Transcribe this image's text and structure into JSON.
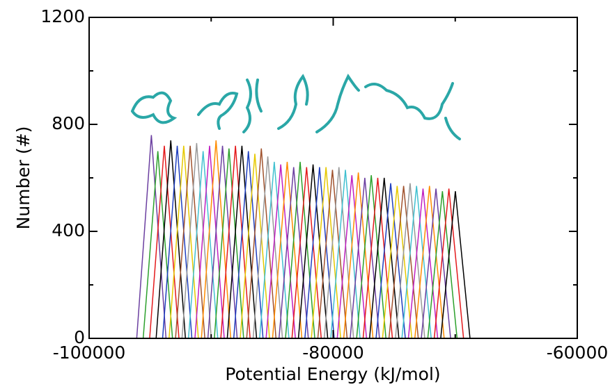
{
  "chart_data": {
    "type": "line",
    "x_label": "Potential Energy (kJ/mol)",
    "y_label": "Number (#)",
    "xlim": [
      -100000,
      -60000
    ],
    "xticks": [
      -100000,
      -80000,
      -60000
    ],
    "xminorticks": [
      -90000,
      -70000
    ],
    "ylim": [
      0,
      1200
    ],
    "yticks": [
      0,
      400,
      800,
      1200
    ],
    "yminorticks": [
      200,
      600,
      1000
    ],
    "series": [
      {
        "color": "#6b3fa0",
        "x": [
          -96100,
          -94900,
          -93700
        ],
        "values": [
          0,
          760,
          0
        ]
      },
      {
        "color": "#2ca02c",
        "x": [
          -95570,
          -94370,
          -93170
        ],
        "values": [
          0,
          700,
          0
        ]
      },
      {
        "color": "#e41a1c",
        "x": [
          -95040,
          -93840,
          -92640
        ],
        "values": [
          0,
          720,
          0
        ]
      },
      {
        "color": "#000000",
        "x": [
          -94510,
          -93310,
          -92110
        ],
        "values": [
          0,
          740,
          0
        ]
      },
      {
        "color": "#1f3fbf",
        "x": [
          -93980,
          -92780,
          -91580
        ],
        "values": [
          0,
          720,
          0
        ]
      },
      {
        "color": "#e6c800",
        "x": [
          -93450,
          -92250,
          -91050
        ],
        "values": [
          0,
          720,
          0
        ]
      },
      {
        "color": "#a0522d",
        "x": [
          -92920,
          -91720,
          -90520
        ],
        "values": [
          0,
          720,
          0
        ]
      },
      {
        "color": "#999999",
        "x": [
          -92390,
          -91190,
          -89990
        ],
        "values": [
          0,
          730,
          0
        ]
      },
      {
        "color": "#40c0d0",
        "x": [
          -91860,
          -90660,
          -89460
        ],
        "values": [
          0,
          700,
          0
        ]
      },
      {
        "color": "#c020c0",
        "x": [
          -91330,
          -90130,
          -88930
        ],
        "values": [
          0,
          720,
          0
        ]
      },
      {
        "color": "#ff8c00",
        "x": [
          -90800,
          -89600,
          -88400
        ],
        "values": [
          0,
          740,
          0
        ]
      },
      {
        "color": "#6b3fa0",
        "x": [
          -90270,
          -89070,
          -87870
        ],
        "values": [
          0,
          720,
          0
        ]
      },
      {
        "color": "#2ca02c",
        "x": [
          -89740,
          -88540,
          -87340
        ],
        "values": [
          0,
          710,
          0
        ]
      },
      {
        "color": "#e41a1c",
        "x": [
          -89210,
          -88010,
          -86810
        ],
        "values": [
          0,
          720,
          0
        ]
      },
      {
        "color": "#000000",
        "x": [
          -88680,
          -87480,
          -86280
        ],
        "values": [
          0,
          720,
          0
        ]
      },
      {
        "color": "#1f3fbf",
        "x": [
          -88150,
          -86950,
          -85750
        ],
        "values": [
          0,
          700,
          0
        ]
      },
      {
        "color": "#e6c800",
        "x": [
          -87620,
          -86420,
          -85220
        ],
        "values": [
          0,
          690,
          0
        ]
      },
      {
        "color": "#a0522d",
        "x": [
          -87090,
          -85890,
          -84690
        ],
        "values": [
          0,
          710,
          0
        ]
      },
      {
        "color": "#999999",
        "x": [
          -86560,
          -85360,
          -84160
        ],
        "values": [
          0,
          680,
          0
        ]
      },
      {
        "color": "#40c0d0",
        "x": [
          -86030,
          -84830,
          -83630
        ],
        "values": [
          0,
          660,
          0
        ]
      },
      {
        "color": "#c020c0",
        "x": [
          -85500,
          -84300,
          -83100
        ],
        "values": [
          0,
          650,
          0
        ]
      },
      {
        "color": "#ff8c00",
        "x": [
          -84970,
          -83770,
          -82570
        ],
        "values": [
          0,
          660,
          0
        ]
      },
      {
        "color": "#6b3fa0",
        "x": [
          -84440,
          -83240,
          -82040
        ],
        "values": [
          0,
          640,
          0
        ]
      },
      {
        "color": "#2ca02c",
        "x": [
          -83910,
          -82710,
          -81510
        ],
        "values": [
          0,
          660,
          0
        ]
      },
      {
        "color": "#e41a1c",
        "x": [
          -83380,
          -82180,
          -80980
        ],
        "values": [
          0,
          640,
          0
        ]
      },
      {
        "color": "#000000",
        "x": [
          -82850,
          -81650,
          -80450
        ],
        "values": [
          0,
          650,
          0
        ]
      },
      {
        "color": "#1f3fbf",
        "x": [
          -82320,
          -81120,
          -79920
        ],
        "values": [
          0,
          640,
          0
        ]
      },
      {
        "color": "#e6c800",
        "x": [
          -81790,
          -80590,
          -79390
        ],
        "values": [
          0,
          640,
          0
        ]
      },
      {
        "color": "#a0522d",
        "x": [
          -81260,
          -80060,
          -78860
        ],
        "values": [
          0,
          630,
          0
        ]
      },
      {
        "color": "#999999",
        "x": [
          -80730,
          -79530,
          -78330
        ],
        "values": [
          0,
          640,
          0
        ]
      },
      {
        "color": "#40c0d0",
        "x": [
          -80200,
          -79000,
          -77800
        ],
        "values": [
          0,
          630,
          0
        ]
      },
      {
        "color": "#c020c0",
        "x": [
          -79670,
          -78470,
          -77270
        ],
        "values": [
          0,
          610,
          0
        ]
      },
      {
        "color": "#ff8c00",
        "x": [
          -79140,
          -77940,
          -76740
        ],
        "values": [
          0,
          620,
          0
        ]
      },
      {
        "color": "#6b3fa0",
        "x": [
          -78610,
          -77410,
          -76210
        ],
        "values": [
          0,
          600,
          0
        ]
      },
      {
        "color": "#2ca02c",
        "x": [
          -78080,
          -76880,
          -75680
        ],
        "values": [
          0,
          610,
          0
        ]
      },
      {
        "color": "#e41a1c",
        "x": [
          -77550,
          -76350,
          -75150
        ],
        "values": [
          0,
          600,
          0
        ]
      },
      {
        "color": "#000000",
        "x": [
          -77020,
          -75820,
          -74620
        ],
        "values": [
          0,
          600,
          0
        ]
      },
      {
        "color": "#1f3fbf",
        "x": [
          -76490,
          -75290,
          -74090
        ],
        "values": [
          0,
          580,
          0
        ]
      },
      {
        "color": "#e6c800",
        "x": [
          -75960,
          -74760,
          -73560
        ],
        "values": [
          0,
          570,
          0
        ]
      },
      {
        "color": "#a0522d",
        "x": [
          -75430,
          -74230,
          -73030
        ],
        "values": [
          0,
          570,
          0
        ]
      },
      {
        "color": "#999999",
        "x": [
          -74900,
          -73700,
          -72500
        ],
        "values": [
          0,
          580,
          0
        ]
      },
      {
        "color": "#40c0d0",
        "x": [
          -74370,
          -73170,
          -71970
        ],
        "values": [
          0,
          570,
          0
        ]
      },
      {
        "color": "#c020c0",
        "x": [
          -73840,
          -72640,
          -71440
        ],
        "values": [
          0,
          560,
          0
        ]
      },
      {
        "color": "#ff8c00",
        "x": [
          -73310,
          -72110,
          -70910
        ],
        "values": [
          0,
          570,
          0
        ]
      },
      {
        "color": "#6b3fa0",
        "x": [
          -72780,
          -71580,
          -70380
        ],
        "values": [
          0,
          560,
          0
        ]
      },
      {
        "color": "#2ca02c",
        "x": [
          -72250,
          -71050,
          -69850
        ],
        "values": [
          0,
          550,
          0
        ]
      },
      {
        "color": "#e41a1c",
        "x": [
          -71720,
          -70520,
          -69320
        ],
        "values": [
          0,
          560,
          0
        ]
      },
      {
        "color": "#000000",
        "x": [
          -71190,
          -69990,
          -68790
        ],
        "values": [
          0,
          550,
          0
        ]
      }
    ]
  }
}
